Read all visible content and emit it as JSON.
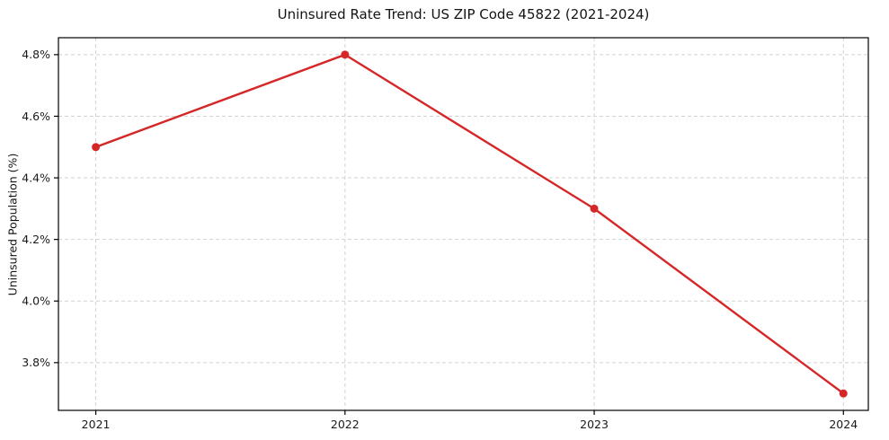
{
  "figure": {
    "background": "#ffffff"
  },
  "chart_data": {
    "type": "line",
    "title": "Uninsured Rate Trend: US ZIP Code 45822 (2021-2024)",
    "xlabel": "",
    "ylabel": "Uninsured Population (%)",
    "x": [
      2021,
      2022,
      2023,
      2024
    ],
    "series": [
      {
        "values": [
          4.5,
          4.8,
          4.3,
          3.7
        ],
        "color": "#d62728",
        "marker": "circle",
        "line_width": 2.4,
        "marker_radius": 4.5
      }
    ],
    "x_tick_labels": [
      "2021",
      "2022",
      "2023",
      "2024"
    ],
    "y_ticks": [
      3.8,
      4.0,
      4.2,
      4.4,
      4.6,
      4.8
    ],
    "y_tick_labels": [
      "3.8%",
      "4.0%",
      "4.2%",
      "4.4%",
      "4.6%",
      "4.8%"
    ],
    "xlim": [
      2020.85,
      2024.1
    ],
    "ylim": [
      3.645,
      4.855
    ],
    "grid": true,
    "grid_style": "dashed",
    "legend_position": "none",
    "colors": {
      "grid": "#d2d2d2",
      "axis": "#000000",
      "tick_text": "#1a1a1a"
    }
  }
}
